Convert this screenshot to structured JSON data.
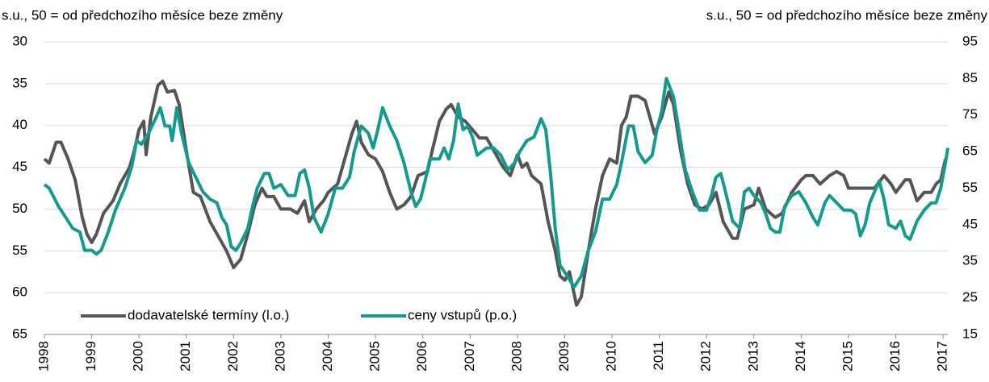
{
  "chart_data": {
    "type": "line",
    "ylabel": "s.u., 50 = od předchozího měsíce beze změny",
    "y2label": "s.u., 50 = od předchozího měsíce beze změny",
    "xlim": [
      1998,
      2017.1
    ],
    "xticks": [
      1998,
      1999,
      2000,
      2001,
      2002,
      2003,
      2004,
      2005,
      2006,
      2007,
      2008,
      2009,
      2010,
      2011,
      2012,
      2013,
      2014,
      2015,
      2016,
      2017
    ],
    "ylim": [
      65,
      30
    ],
    "yticks": [
      30,
      35,
      40,
      45,
      50,
      55,
      60,
      65
    ],
    "y2lim": [
      15,
      95
    ],
    "y2ticks": [
      95,
      85,
      75,
      65,
      55,
      45,
      35,
      25,
      15
    ],
    "grid": true,
    "series": [
      {
        "name": "dodavatelské termíny (l.o.)",
        "color": "#555555",
        "axis": "y",
        "x": [
          1998.0,
          1998.1,
          1998.25,
          1998.35,
          1998.5,
          1998.65,
          1998.8,
          1998.9,
          1999.0,
          1999.1,
          1999.25,
          1999.45,
          1999.6,
          1999.8,
          1999.9,
          2000.0,
          2000.1,
          2000.15,
          2000.25,
          2000.4,
          2000.5,
          2000.6,
          2000.75,
          2000.85,
          2001.0,
          2001.15,
          2001.3,
          2001.5,
          2001.7,
          2001.85,
          2002.0,
          2002.15,
          2002.3,
          2002.45,
          2002.6,
          2002.7,
          2002.85,
          2003.0,
          2003.2,
          2003.35,
          2003.5,
          2003.6,
          2003.75,
          2003.9,
          2004.0,
          2004.2,
          2004.35,
          2004.5,
          2004.6,
          2004.7,
          2004.85,
          2005.0,
          2005.15,
          2005.3,
          2005.45,
          2005.6,
          2005.75,
          2005.9,
          2006.1,
          2006.2,
          2006.35,
          2006.5,
          2006.6,
          2006.75,
          2006.9,
          2007.05,
          2007.2,
          2007.35,
          2007.5,
          2007.7,
          2007.85,
          2008.0,
          2008.1,
          2008.2,
          2008.3,
          2008.5,
          2008.65,
          2008.8,
          2008.9,
          2009.0,
          2009.1,
          2009.25,
          2009.35,
          2009.5,
          2009.65,
          2009.8,
          2009.95,
          2010.1,
          2010.2,
          2010.3,
          2010.4,
          2010.55,
          2010.7,
          2010.8,
          2010.9,
          2011.05,
          2011.2,
          2011.3,
          2011.45,
          2011.6,
          2011.75,
          2011.9,
          2012.05,
          2012.2,
          2012.35,
          2012.55,
          2012.65,
          2012.8,
          2013.0,
          2013.1,
          2013.25,
          2013.45,
          2013.6,
          2013.8,
          2014.0,
          2014.1,
          2014.25,
          2014.4,
          2014.6,
          2014.75,
          2014.9,
          2015.0,
          2015.2,
          2015.4,
          2015.55,
          2015.75,
          2015.9,
          2016.0,
          2016.2,
          2016.3,
          2016.45,
          2016.6,
          2016.75,
          2016.85,
          2016.95,
          2017.05
        ],
        "values": [
          44,
          44.5,
          42,
          42,
          44,
          46.5,
          51,
          53,
          54,
          53,
          50.5,
          49,
          47,
          45,
          43,
          40.5,
          39.5,
          43.5,
          39,
          35.2,
          34.7,
          36,
          35.8,
          37.5,
          43,
          48,
          48.5,
          51.5,
          53.5,
          55,
          57,
          56,
          53,
          49.5,
          47.5,
          48.5,
          48.5,
          50,
          50,
          50.5,
          49,
          51.5,
          50,
          49,
          48,
          47,
          44,
          41,
          39.5,
          42,
          43.5,
          44,
          45.5,
          48,
          50,
          49.5,
          48.5,
          46,
          45.5,
          43,
          39.5,
          38,
          37.5,
          39,
          39.5,
          40.5,
          41.5,
          41.5,
          43,
          45,
          46,
          43.5,
          45,
          44.5,
          46,
          47,
          51.5,
          55,
          58,
          58.5,
          57.5,
          61.5,
          60.5,
          55,
          50,
          46,
          44,
          44.5,
          40,
          39,
          36.5,
          36.5,
          37,
          39,
          41,
          39,
          36,
          37.5,
          43,
          47,
          49.5,
          50,
          49.5,
          48,
          51.5,
          53.5,
          53.5,
          50,
          49.5,
          47.5,
          50,
          51,
          50.5,
          48,
          46.5,
          46,
          46,
          47,
          46,
          45.5,
          46,
          47.5,
          47.5,
          47.5,
          47.5,
          46,
          47,
          48,
          46.5,
          46.5,
          49,
          48,
          48,
          47,
          46.5,
          44
        ]
      },
      {
        "name": "ceny vstupů (p.o.)",
        "color": "#149a8f",
        "axis": "y2",
        "x": [
          1998.0,
          1998.1,
          1998.3,
          1998.45,
          1998.6,
          1998.75,
          1998.85,
          1999.0,
          1999.1,
          1999.2,
          1999.35,
          1999.5,
          1999.7,
          1999.85,
          1999.95,
          2000.05,
          2000.2,
          2000.35,
          2000.45,
          2000.55,
          2000.65,
          2000.7,
          2000.8,
          2000.9,
          2001.05,
          2001.2,
          2001.35,
          2001.5,
          2001.65,
          2001.75,
          2001.85,
          2001.95,
          2002.05,
          2002.15,
          2002.3,
          2002.4,
          2002.5,
          2002.65,
          2002.75,
          2002.85,
          2003.0,
          2003.15,
          2003.3,
          2003.4,
          2003.5,
          2003.6,
          2003.7,
          2003.85,
          2004.0,
          2004.15,
          2004.3,
          2004.45,
          2004.55,
          2004.7,
          2004.85,
          2004.95,
          2005.05,
          2005.15,
          2005.3,
          2005.45,
          2005.6,
          2005.75,
          2005.85,
          2005.95,
          2006.05,
          2006.15,
          2006.35,
          2006.45,
          2006.55,
          2006.65,
          2006.75,
          2006.85,
          2006.95,
          2007.05,
          2007.15,
          2007.25,
          2007.35,
          2007.5,
          2007.65,
          2007.8,
          2007.95,
          2008.05,
          2008.2,
          2008.35,
          2008.5,
          2008.6,
          2008.7,
          2008.8,
          2008.9,
          2009.05,
          2009.2,
          2009.35,
          2009.5,
          2009.65,
          2009.8,
          2009.95,
          2010.1,
          2010.2,
          2010.35,
          2010.45,
          2010.55,
          2010.7,
          2010.85,
          2010.95,
          2011.05,
          2011.15,
          2011.3,
          2011.4,
          2011.55,
          2011.7,
          2011.85,
          2012.0,
          2012.1,
          2012.2,
          2012.3,
          2012.4,
          2012.55,
          2012.7,
          2012.8,
          2012.9,
          2013.0,
          2013.15,
          2013.25,
          2013.35,
          2013.45,
          2013.55,
          2013.65,
          2013.8,
          2013.95,
          2014.1,
          2014.25,
          2014.35,
          2014.5,
          2014.6,
          2014.75,
          2014.9,
          2015.05,
          2015.15,
          2015.25,
          2015.35,
          2015.45,
          2015.55,
          2015.65,
          2015.75,
          2015.85,
          2016.0,
          2016.1,
          2016.2,
          2016.3,
          2016.45,
          2016.6,
          2016.75,
          2016.85,
          2016.95,
          2017.05,
          2017.1
        ],
        "values": [
          56,
          55,
          50,
          47,
          44,
          43,
          38,
          38,
          37,
          38,
          43,
          49,
          55,
          61,
          68,
          67,
          70,
          74,
          77,
          72,
          72,
          68,
          77,
          70,
          62,
          58,
          54,
          52,
          51,
          47,
          45,
          39,
          38,
          40,
          44,
          50,
          55,
          59,
          59,
          55,
          56,
          53,
          53,
          59,
          60,
          55,
          47,
          43,
          48,
          55,
          55,
          58,
          65,
          72,
          70,
          66,
          71,
          77,
          72,
          68,
          62,
          54,
          50,
          52,
          57,
          63,
          63,
          66,
          63,
          68,
          78,
          71,
          72,
          69,
          64,
          65,
          66,
          66,
          64,
          60,
          62,
          65,
          68,
          69,
          74,
          71,
          59,
          44,
          34,
          31,
          28,
          31,
          38,
          43,
          52,
          52,
          56,
          62,
          72,
          72,
          65,
          62,
          64,
          71,
          76,
          85,
          80,
          72,
          60,
          54,
          49,
          49,
          53,
          58,
          59,
          54,
          46,
          44,
          54,
          55,
          53,
          51,
          48,
          44,
          43,
          43,
          50,
          53,
          54,
          51,
          47,
          45,
          51,
          53,
          51,
          49,
          49,
          48,
          42,
          45,
          51,
          54,
          57,
          52,
          45,
          44,
          46,
          42,
          41,
          46,
          49,
          51,
          51,
          55,
          62,
          66
        ]
      }
    ]
  }
}
